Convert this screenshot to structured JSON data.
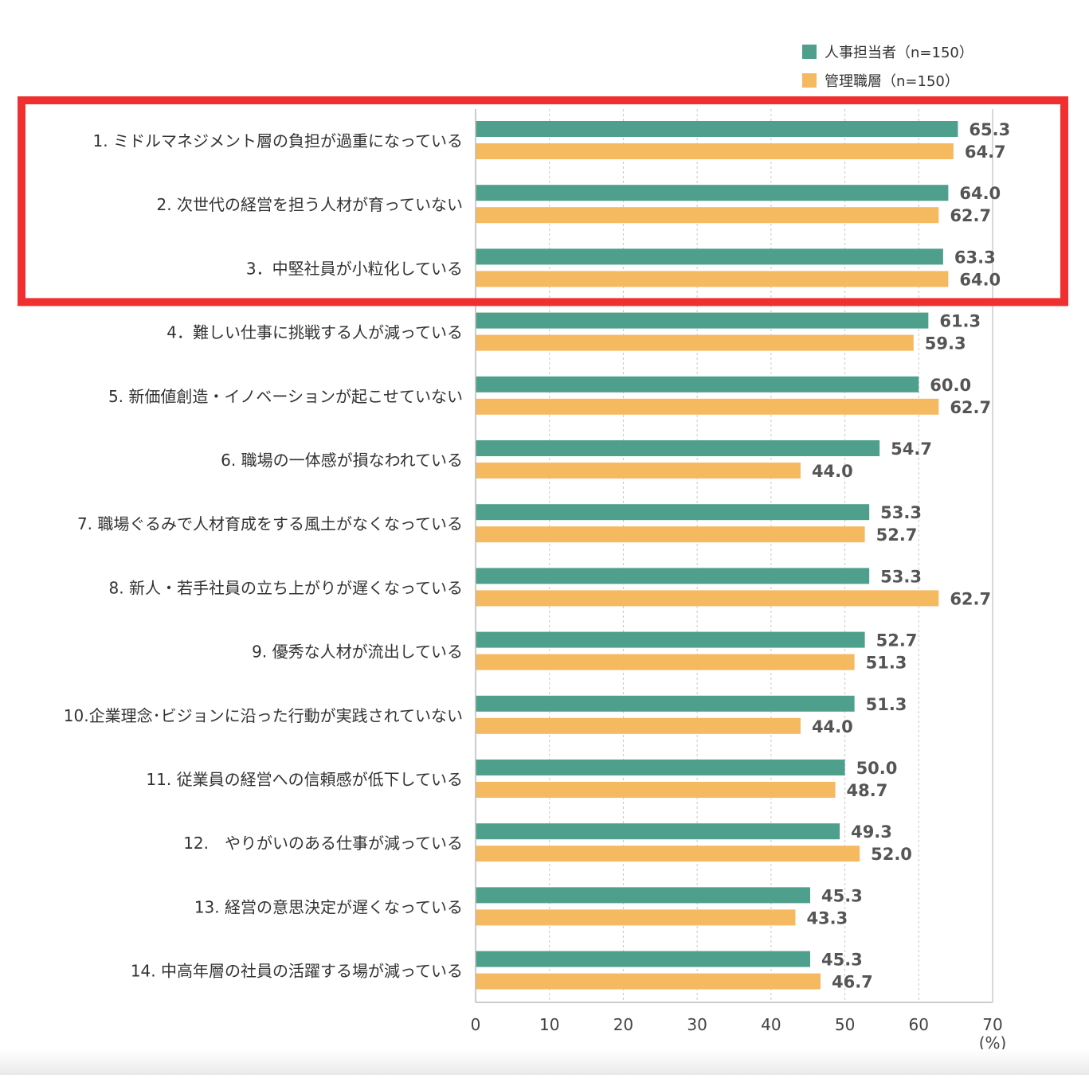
{
  "legend": [
    {
      "label": "人事担当者（n=150）",
      "color": "#4e9f8b"
    },
    {
      "label": "管理職層（n=150）",
      "color": "#f5b95f"
    }
  ],
  "highlight": {
    "color": "#f03030",
    "categories": [
      0,
      1,
      2
    ]
  },
  "chart_data": {
    "type": "bar",
    "orientation": "horizontal",
    "categories": [
      "1. ミドルマネジメント層の負担が過重になっている",
      "2. 次世代の経営を担う人材が育っていない",
      "3．中堅社員が小粒化している",
      "4．難しい仕事に挑戦する人が減っている",
      "5. 新価値創造・イノベーションが起こせていない",
      "6. 職場の一体感が損なわれている",
      "7. 職場ぐるみで人材育成をする風土がなくなっている",
      "8. 新人・若手社員の立ち上がりが遅くなっている",
      "9. 優秀な人材が流出している",
      "10.企業理念･ビジョンに沿った行動が実践されていない",
      "11. 従業員の経営への信頼感が低下している",
      "12.　やりがいのある仕事が減っている",
      "13. 経営の意思決定が遅くなっている",
      "14. 中高年層の社員の活躍する場が減っている"
    ],
    "series": [
      {
        "name": "人事担当者（n=150）",
        "color": "#4e9f8b",
        "values": [
          65.3,
          64.0,
          63.3,
          61.3,
          60.0,
          54.7,
          53.3,
          53.3,
          52.7,
          51.3,
          50.0,
          49.3,
          45.3,
          45.3
        ],
        "labels": [
          "65.3",
          "64.0",
          "63.3",
          "61.3",
          "60.0",
          "54.7",
          "53.3",
          "53.3",
          "52.7",
          "51.3",
          "50.0",
          "49.3",
          "45.3",
          "45.3"
        ]
      },
      {
        "name": "管理職層（n=150）",
        "color": "#f5b95f",
        "values": [
          64.7,
          62.7,
          64.0,
          59.3,
          62.7,
          44.0,
          52.7,
          62.7,
          51.3,
          44.0,
          48.7,
          52.0,
          43.3,
          46.7
        ],
        "labels": [
          "64.7",
          "62.7",
          "64.0",
          "59.3",
          "62.7",
          "44.0",
          "52.7",
          "62.7",
          "51.3",
          "44.0",
          "48.7",
          "52.0",
          "43.3",
          "46.7"
        ]
      }
    ],
    "xlim": [
      0,
      70
    ],
    "xticks": [
      "0",
      "10",
      "20",
      "30",
      "40",
      "50",
      "60",
      "70"
    ],
    "xunit": "(%)",
    "grid": true,
    "legend_position": "top-right"
  }
}
